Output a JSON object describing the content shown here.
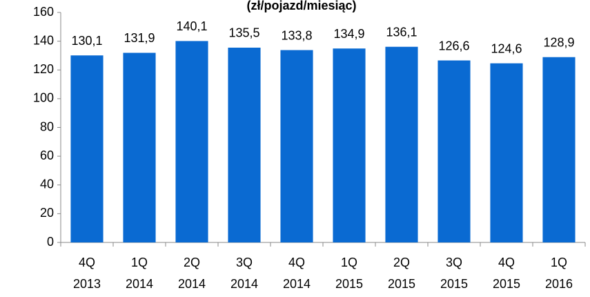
{
  "chart_data": {
    "type": "bar",
    "title": "(zł/pojazd/miesiąc)",
    "categories": [
      [
        "4Q",
        "2013"
      ],
      [
        "1Q",
        "2014"
      ],
      [
        "2Q",
        "2014"
      ],
      [
        "3Q",
        "2014"
      ],
      [
        "4Q",
        "2014"
      ],
      [
        "1Q",
        "2015"
      ],
      [
        "2Q",
        "2015"
      ],
      [
        "3Q",
        "2015"
      ],
      [
        "4Q",
        "2015"
      ],
      [
        "1Q",
        "2016"
      ]
    ],
    "values": [
      130.1,
      131.9,
      140.1,
      135.5,
      133.8,
      134.9,
      136.1,
      126.6,
      124.6,
      128.9
    ],
    "value_labels": [
      "130,1",
      "131,9",
      "140,1",
      "135,5",
      "133,8",
      "134,9",
      "136,1",
      "126,6",
      "124,6",
      "128,9"
    ],
    "color": "#0a6ad2",
    "ylim": [
      0,
      160
    ],
    "yticks": [
      0,
      20,
      40,
      60,
      80,
      100,
      120,
      140,
      160
    ],
    "grid": false
  }
}
